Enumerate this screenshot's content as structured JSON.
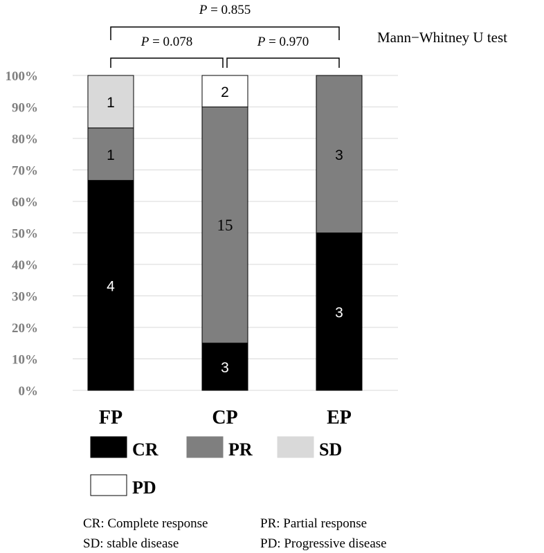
{
  "chart_data": {
    "type": "bar",
    "stacked": true,
    "percent": true,
    "categories": [
      "FP",
      "CP",
      "EP"
    ],
    "series": [
      {
        "name": "CR",
        "values": [
          4,
          3,
          3
        ],
        "color": "#000000",
        "label_color": "#ffffff"
      },
      {
        "name": "PR",
        "values": [
          1,
          15,
          3
        ],
        "color": "#7f7f7f",
        "label_color": "#000000"
      },
      {
        "name": "SD",
        "values": [
          1,
          0,
          0
        ],
        "color": "#d9d9d9",
        "label_color": "#000000"
      },
      {
        "name": "PD",
        "values": [
          0,
          2,
          0
        ],
        "color": "#ffffff",
        "label_color": "#000000"
      }
    ],
    "segment_labels": [
      [
        "4",
        "3",
        "3"
      ],
      [
        "1",
        "15",
        "3"
      ],
      [
        "1",
        "",
        ""
      ],
      [
        "",
        "2",
        ""
      ]
    ],
    "yticks": [
      "0%",
      "10%",
      "20%",
      "30%",
      "40%",
      "50%",
      "60%",
      "70%",
      "80%",
      "90%",
      "100%"
    ],
    "ylim": [
      0,
      100
    ],
    "grid": true,
    "legend_position": "bottom",
    "significance": [
      {
        "from": "FP",
        "to": "CP",
        "p_prefix": "P",
        "p_value": " = 0.078"
      },
      {
        "from": "CP",
        "to": "EP",
        "p_prefix": "P",
        "p_value": " = 0.970"
      },
      {
        "from": "FP",
        "to": "EP",
        "p_prefix": "P",
        "p_value": " = 0.855"
      }
    ],
    "test_name": "Mann−Whitney U test",
    "abbreviations": [
      "CR: Complete response",
      "PR: Partial response",
      "SD: stable disease",
      "PD: Progressive disease"
    ]
  }
}
